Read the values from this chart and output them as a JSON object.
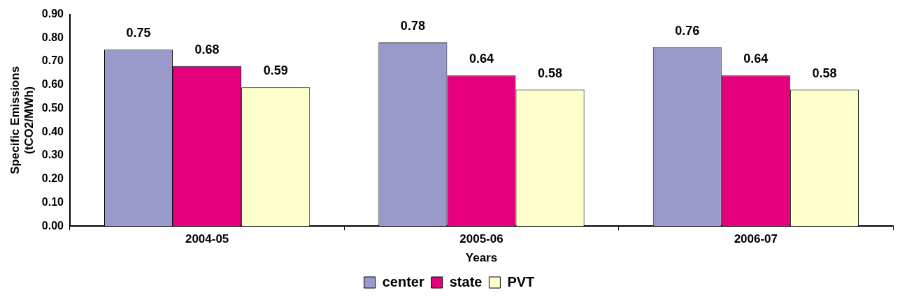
{
  "chart_data": {
    "type": "bar",
    "xlabel": "Years",
    "ylabel": "Specific Emissions\n(tCO2/MWh)",
    "categories": [
      "2004-05",
      "2005-06",
      "2006-07"
    ],
    "series": [
      {
        "name": "center",
        "color": "#9999cc",
        "values": [
          0.75,
          0.78,
          0.76
        ]
      },
      {
        "name": "state",
        "color": "#e6007e",
        "values": [
          0.68,
          0.64,
          0.64
        ]
      },
      {
        "name": "PVT",
        "color": "#ffffcc",
        "values": [
          0.59,
          0.58,
          0.58
        ]
      }
    ],
    "ylim": [
      0,
      0.9
    ],
    "yticks": [
      {
        "value": 0,
        "label": "0.00"
      },
      {
        "value": 0.1,
        "label": "0.10"
      },
      {
        "value": 0.2,
        "label": "0.20"
      },
      {
        "value": 0.3,
        "label": "0.30"
      },
      {
        "value": 0.4,
        "label": "0.40"
      },
      {
        "value": 0.5,
        "label": "0.50"
      },
      {
        "value": 0.6,
        "label": "0.60"
      },
      {
        "value": 0.7,
        "label": "0.70"
      },
      {
        "value": 0.8,
        "label": "0.80"
      },
      {
        "value": 0.9,
        "label": "0.90"
      }
    ],
    "grid": false,
    "legend": "bottom",
    "data_labels": true
  }
}
